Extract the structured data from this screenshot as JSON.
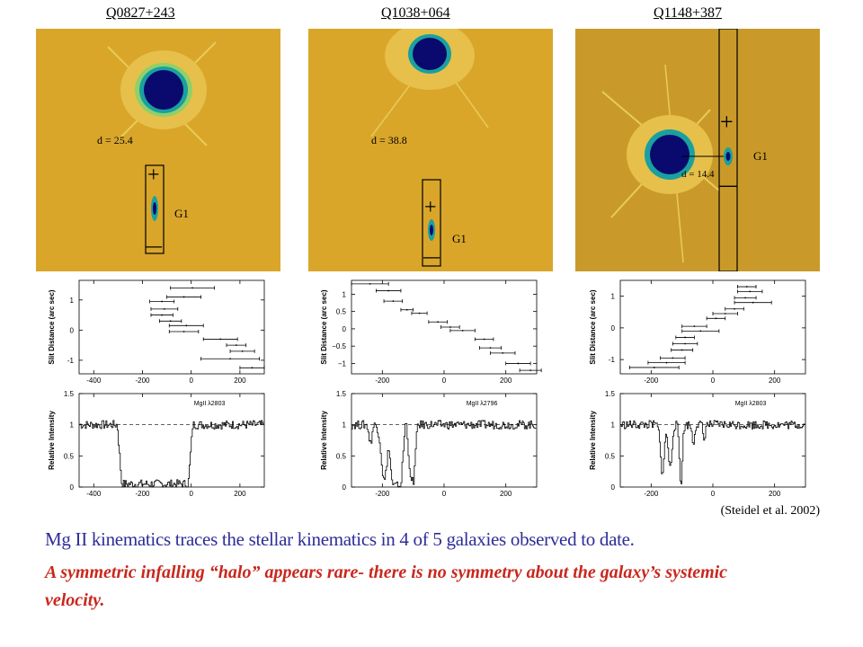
{
  "panels": [
    {
      "id": "Q0827+243",
      "title": "Q0827+243",
      "distance_label": "d = 25.4",
      "galaxy_label": "G1",
      "plus_sign": "+",
      "minus_sign": "—",
      "slit_plot": {
        "ylabel": "Slit Distance (arc sec)",
        "xticks": [
          "-400",
          "-200",
          "0",
          "200"
        ],
        "yticks": [
          "1",
          "0",
          "-1"
        ],
        "xlim": [
          -460,
          300
        ],
        "ylim": [
          -1.45,
          1.65
        ],
        "points": [
          {
            "v": 5,
            "verr": 90,
            "s": 1.4
          },
          {
            "v": -30,
            "verr": 70,
            "s": 1.1
          },
          {
            "v": -120,
            "verr": 50,
            "s": 0.95
          },
          {
            "v": -110,
            "verr": 55,
            "s": 0.7
          },
          {
            "v": -120,
            "verr": 45,
            "s": 0.5
          },
          {
            "v": -85,
            "verr": 45,
            "s": 0.3
          },
          {
            "v": -20,
            "verr": 70,
            "s": 0.15
          },
          {
            "v": -30,
            "verr": 60,
            "s": -0.05
          },
          {
            "v": 120,
            "verr": 70,
            "s": -0.3
          },
          {
            "v": 185,
            "verr": 40,
            "s": -0.5
          },
          {
            "v": 210,
            "verr": 50,
            "s": -0.7
          },
          {
            "v": 160,
            "verr": 120,
            "s": -0.95
          },
          {
            "v": 250,
            "verr": 50,
            "s": -1.25
          }
        ]
      },
      "spectrum_plot": {
        "ylabel": "Relative Intensity",
        "line_label": "MgII λ2803",
        "xticks": [
          "-400",
          "-200",
          "0",
          "200"
        ],
        "yticks": [
          "1.5",
          "1",
          "0.5",
          "0"
        ],
        "xlim": [
          -460,
          300
        ],
        "ylim": [
          0,
          1.5
        ],
        "troughs": [
          {
            "center": -150,
            "width": 310,
            "depth": 0.95,
            "flat": 0.88
          }
        ]
      }
    },
    {
      "id": "Q1038+064",
      "title": "Q1038+064",
      "distance_label": "d = 38.8",
      "galaxy_label": "G1",
      "plus_sign": "+",
      "minus_sign": "—",
      "slit_plot": {
        "ylabel": "Slit Distance (arc sec)",
        "xticks": [
          "-200",
          "0",
          "200"
        ],
        "yticks": [
          "1",
          "0.5",
          "0",
          "−0.5",
          "−1"
        ],
        "xlim": [
          -300,
          300
        ],
        "ylim": [
          -1.3,
          1.4
        ],
        "points": [
          {
            "v": -240,
            "verr": 60,
            "s": 1.3
          },
          {
            "v": -180,
            "verr": 40,
            "s": 1.1
          },
          {
            "v": -165,
            "verr": 30,
            "s": 0.8
          },
          {
            "v": -120,
            "verr": 20,
            "s": 0.55
          },
          {
            "v": -80,
            "verr": 25,
            "s": 0.45
          },
          {
            "v": -20,
            "verr": 30,
            "s": 0.2
          },
          {
            "v": 20,
            "verr": 30,
            "s": 0.05
          },
          {
            "v": 60,
            "verr": 40,
            "s": -0.05
          },
          {
            "v": 130,
            "verr": 30,
            "s": -0.3
          },
          {
            "v": 150,
            "verr": 35,
            "s": -0.55
          },
          {
            "v": 190,
            "verr": 40,
            "s": -0.7
          },
          {
            "v": 240,
            "verr": 40,
            "s": -1.0
          },
          {
            "v": 280,
            "verr": 35,
            "s": -1.2
          }
        ]
      },
      "spectrum_plot": {
        "ylabel": "Relative Intensity",
        "line_label": "MgII λ2796",
        "xticks": [
          "-200",
          "0",
          "200"
        ],
        "yticks": [
          "1.5",
          "1",
          "0.5",
          "0"
        ],
        "xlim": [
          -300,
          300
        ],
        "ylim": [
          0,
          1.5
        ],
        "troughs": [
          {
            "center": -195,
            "width": 30,
            "depth": 0.9,
            "flat": 0
          },
          {
            "center": -155,
            "width": 55,
            "depth": 0.98,
            "flat": 0.5
          },
          {
            "center": -105,
            "width": 35,
            "depth": 0.9,
            "flat": 0.3
          },
          {
            "center": -240,
            "width": 15,
            "depth": 0.3,
            "flat": 0
          }
        ]
      }
    },
    {
      "id": "Q1148+387",
      "title": "Q1148+387",
      "distance_label": "d = 14.4",
      "galaxy_label": "G1",
      "plus_sign": "+",
      "minus_sign": "—",
      "slit_plot": {
        "ylabel": "Slit Distance (arc sec)",
        "xticks": [
          "-200",
          "0",
          "200"
        ],
        "yticks": [
          "1",
          "0",
          "-1"
        ],
        "xlim": [
          -300,
          300
        ],
        "ylim": [
          -1.45,
          1.5
        ],
        "points": [
          {
            "v": 110,
            "verr": 30,
            "s": 1.3
          },
          {
            "v": 120,
            "verr": 40,
            "s": 1.15
          },
          {
            "v": 105,
            "verr": 35,
            "s": 0.95
          },
          {
            "v": 130,
            "verr": 60,
            "s": 0.8
          },
          {
            "v": 70,
            "verr": 30,
            "s": 0.6
          },
          {
            "v": 40,
            "verr": 40,
            "s": 0.45
          },
          {
            "v": 10,
            "verr": 30,
            "s": 0.3
          },
          {
            "v": -60,
            "verr": 40,
            "s": 0.05
          },
          {
            "v": -40,
            "verr": 60,
            "s": -0.1
          },
          {
            "v": -90,
            "verr": 30,
            "s": -0.3
          },
          {
            "v": -90,
            "verr": 40,
            "s": -0.5
          },
          {
            "v": -100,
            "verr": 35,
            "s": -0.7
          },
          {
            "v": -130,
            "verr": 40,
            "s": -0.95
          },
          {
            "v": -150,
            "verr": 60,
            "s": -1.1
          },
          {
            "v": -190,
            "verr": 80,
            "s": -1.25
          }
        ]
      },
      "spectrum_plot": {
        "ylabel": "Relative Intensity",
        "line_label": "MgII λ2803",
        "xticks": [
          "-200",
          "0",
          "200"
        ],
        "yticks": [
          "1.5",
          "1",
          "0.5",
          "0"
        ],
        "xlim": [
          -300,
          300
        ],
        "ylim": [
          0,
          1.5
        ],
        "troughs": [
          {
            "center": -165,
            "width": 20,
            "depth": 0.75,
            "flat": 0
          },
          {
            "center": -140,
            "width": 18,
            "depth": 0.7,
            "flat": 0
          },
          {
            "center": -105,
            "width": 15,
            "depth": 0.95,
            "flat": 0
          },
          {
            "center": -65,
            "width": 12,
            "depth": 0.3,
            "flat": 0
          },
          {
            "center": -30,
            "width": 10,
            "depth": 0.25,
            "flat": 0
          }
        ]
      }
    }
  ],
  "credit": "(Steidel et al. 2002)",
  "statement_1": "Mg II kinematics traces the stellar kinematics in 4 of 5 galaxies observed to date.",
  "statement_2": "A symmetric infalling “halo” appears rare- there is no symmetry about the galaxy’s systemic velocity.",
  "colors": {
    "image_background": "#d9a62a",
    "quasar_core": "#0a0a6e",
    "quasar_halo": "#1aa0a0",
    "slit_box": "#000000",
    "statement_1": "#2d2d9a",
    "statement_2": "#c8281e"
  }
}
